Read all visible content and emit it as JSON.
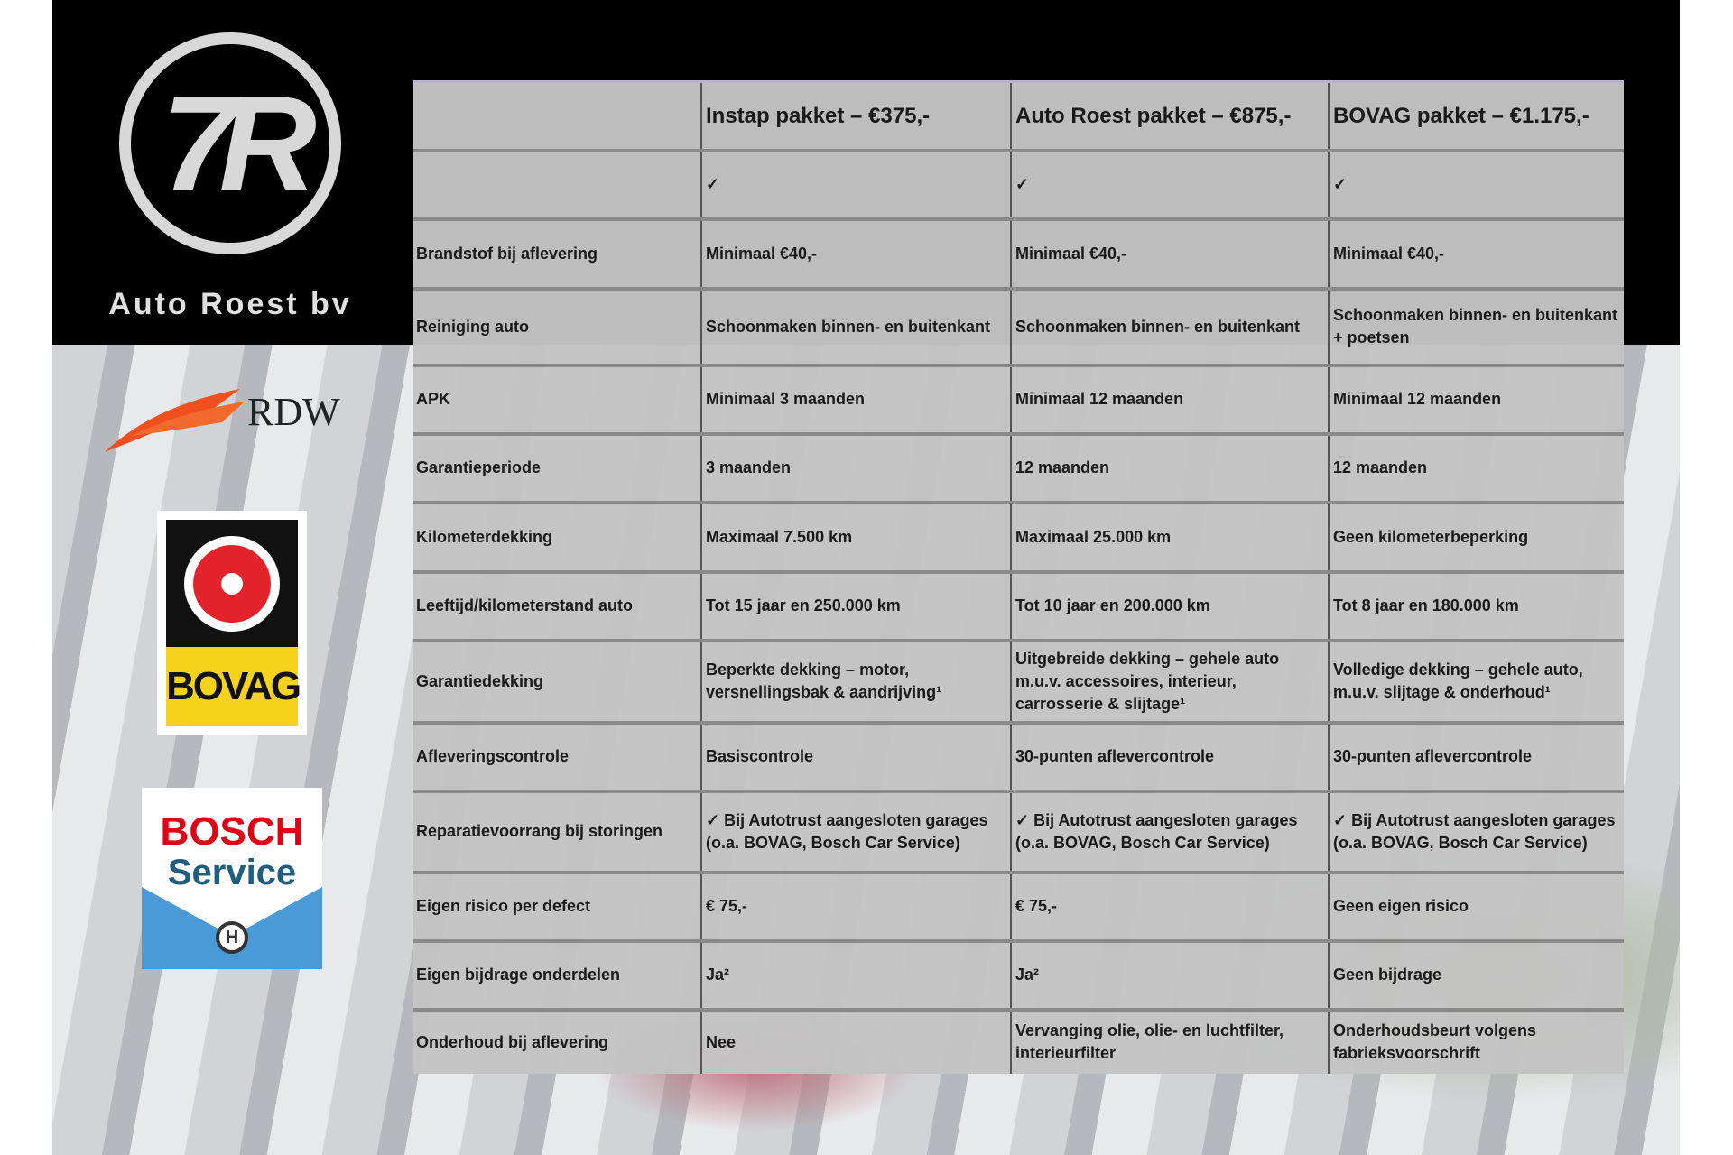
{
  "brand": {
    "name": "Auto Roest bv",
    "logo_letters": "7R"
  },
  "logos": {
    "rdw": "RDW",
    "bovag": "BOVAG",
    "bosch_line1": "BOSCH",
    "bosch_line2": "Service"
  },
  "table": {
    "headers": [
      "",
      "Instap pakket – €375,-",
      "Auto Roest pakket – €875,-",
      "BOVAG pakket – €1.175,-"
    ],
    "rows": [
      [
        "",
        "✓",
        "✓",
        "✓"
      ],
      [
        "Brandstof bij aflevering",
        "Minimaal €40,-",
        "Minimaal €40,-",
        "Minimaal €40,-"
      ],
      [
        "Reiniging auto",
        "Schoonmaken binnen- en buitenkant",
        "Schoonmaken binnen- en buitenkant",
        "Schoonmaken binnen- en buitenkant + poetsen"
      ],
      [
        "APK",
        "Minimaal 3 maanden",
        "Minimaal 12 maanden",
        "Minimaal 12 maanden"
      ],
      [
        "Garantieperiode",
        "3 maanden",
        "12 maanden",
        "12 maanden"
      ],
      [
        "Kilometerdekking",
        "Maximaal 7.500 km",
        "Maximaal 25.000 km",
        "Geen kilometerbeperking"
      ],
      [
        "Leeftijd/kilometerstand auto",
        "Tot 15 jaar en 250.000 km",
        "Tot 10 jaar en 200.000 km",
        "Tot 8 jaar en 180.000 km"
      ],
      [
        "Garantiedekking",
        "Beperkte dekking – motor, versnellingsbak & aandrijving¹",
        "Uitgebreide dekking – gehele auto m.u.v. accessoires, interieur, carrosserie & slijtage¹",
        "Volledige dekking – gehele auto, m.u.v. slijtage & onderhoud¹"
      ],
      [
        "Afleveringscontrole",
        "Basiscontrole",
        "30-punten aflevercontrole",
        "30-punten aflevercontrole"
      ],
      [
        "Reparatievoorrang bij storingen",
        "✓ Bij Autotrust aangesloten garages (o.a. BOVAG, Bosch Car Service)",
        "✓ Bij Autotrust aangesloten garages (o.a. BOVAG, Bosch Car Service)",
        "✓ Bij Autotrust aangesloten garages (o.a. BOVAG, Bosch Car Service)"
      ],
      [
        "Eigen risico per defect",
        "€ 75,-",
        "€ 75,-",
        "Geen eigen risico"
      ],
      [
        "Eigen bijdrage onderdelen",
        "Ja²",
        "Ja²",
        "Geen bijdrage"
      ],
      [
        "Onderhoud bij aflevering",
        "Nee",
        "Vervanging olie, olie- en luchtfilter, interieurfilter",
        "Onderhoudsbeurt volgens fabrieksvoorschrift"
      ]
    ]
  }
}
